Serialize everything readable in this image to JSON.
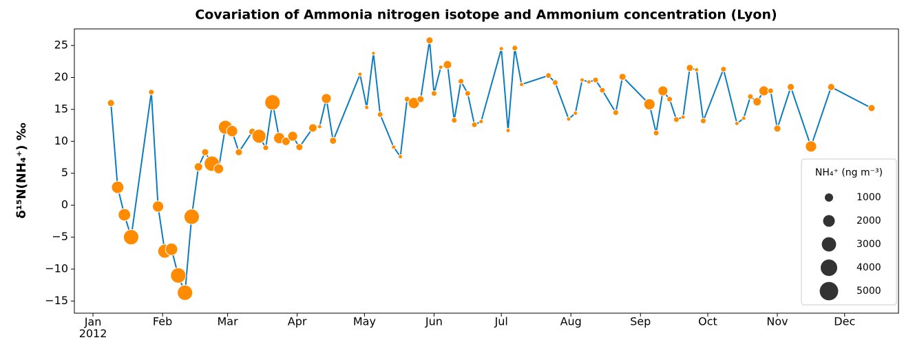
{
  "chart_data": {
    "type": "line",
    "title": "Covariation of Ammonia nitrogen isotope and Ammonium concentration (Lyon)",
    "y_label": "δ¹⁵N(NH₄⁺) ‰",
    "x": [
      8,
      11,
      14,
      17,
      26,
      29,
      32,
      35,
      38,
      41,
      44,
      47,
      50,
      53,
      56,
      59,
      62,
      65,
      71,
      74,
      77,
      80,
      83,
      86,
      89,
      92,
      98,
      101,
      104,
      107,
      119,
      122,
      125,
      128,
      134,
      137,
      140,
      143,
      146,
      150,
      152,
      155,
      158,
      161,
      164,
      167,
      170,
      173,
      182,
      185,
      188,
      191,
      203,
      206,
      212,
      215,
      218,
      221,
      224,
      227,
      233,
      236,
      248,
      251,
      254,
      257,
      260,
      263,
      266,
      269,
      272,
      281,
      287,
      290,
      293,
      296,
      299,
      302,
      305,
      311,
      320,
      329,
      347
    ],
    "values": [
      16,
      2.8,
      -1.5,
      -5,
      17.7,
      -0.2,
      -7.2,
      -6.9,
      -11,
      -13.7,
      -1.8,
      6,
      8.3,
      6.5,
      5.7,
      12.2,
      11.6,
      8.3,
      11.5,
      10.8,
      9,
      16.1,
      10.5,
      10,
      10.8,
      9.1,
      12.1,
      12.3,
      16.7,
      10.1,
      20.5,
      15.3,
      23.8,
      14.2,
      9.1,
      7.6,
      16.6,
      16,
      16.6,
      25.8,
      17.5,
      21.6,
      22,
      13.3,
      19.4,
      17.5,
      12.6,
      13.1,
      24.5,
      11.7,
      24.6,
      18.9,
      20.3,
      19.2,
      13.5,
      14.4,
      19.6,
      19.3,
      19.6,
      18,
      14.5,
      20.1,
      15.8,
      11.3,
      17.9,
      16.6,
      13.4,
      13.8,
      21.5,
      21.2,
      13.2,
      21.3,
      12.8,
      13.6,
      17,
      16.2,
      17.9,
      17.9,
      12,
      18.5,
      9.2,
      18.5,
      15.2
    ],
    "sizes": [
      700,
      2200,
      2200,
      3400,
      450,
      1800,
      2800,
      2200,
      3400,
      3400,
      3400,
      1000,
      700,
      3400,
      1400,
      2800,
      1800,
      700,
      700,
      2800,
      450,
      3400,
      1800,
      1000,
      1400,
      700,
      1000,
      250,
      1400,
      700,
      250,
      250,
      200,
      450,
      250,
      250,
      450,
      1800,
      700,
      700,
      450,
      250,
      1000,
      450,
      450,
      450,
      450,
      250,
      250,
      250,
      450,
      250,
      450,
      450,
      250,
      250,
      250,
      250,
      450,
      450,
      450,
      700,
      1800,
      450,
      1400,
      450,
      450,
      250,
      700,
      250,
      450,
      450,
      250,
      250,
      450,
      1000,
      1400,
      450,
      700,
      700,
      1800,
      700,
      700
    ],
    "line_color": "#0b7bbf",
    "marker_color": "#ff8c00",
    "size_legend": {
      "title": "NH₄⁺  (ng m⁻³)",
      "values": [
        1000,
        2000,
        3000,
        4000,
        5000
      ]
    },
    "legend_position": "lower right",
    "xlim": [
      -8.3,
      359
    ],
    "xticks": [
      {
        "value": 0,
        "label": "Jan\n2012"
      },
      {
        "value": 31,
        "label": "Feb"
      },
      {
        "value": 60,
        "label": "Mar"
      },
      {
        "value": 91,
        "label": "Apr"
      },
      {
        "value": 121,
        "label": "May"
      },
      {
        "value": 152,
        "label": "Jun"
      },
      {
        "value": 182,
        "label": "Jul"
      },
      {
        "value": 213,
        "label": "Aug"
      },
      {
        "value": 244,
        "label": "Sep"
      },
      {
        "value": 274,
        "label": "Oct"
      },
      {
        "value": 305,
        "label": "Nov"
      },
      {
        "value": 335,
        "label": "Dec"
      }
    ],
    "ylim": [
      -16.9,
      27.6
    ],
    "yticks": [
      {
        "value": -15,
        "label": "−15"
      },
      {
        "value": -10,
        "label": "−10"
      },
      {
        "value": -5,
        "label": "−5"
      },
      0,
      5,
      10,
      15,
      20,
      25
    ]
  }
}
